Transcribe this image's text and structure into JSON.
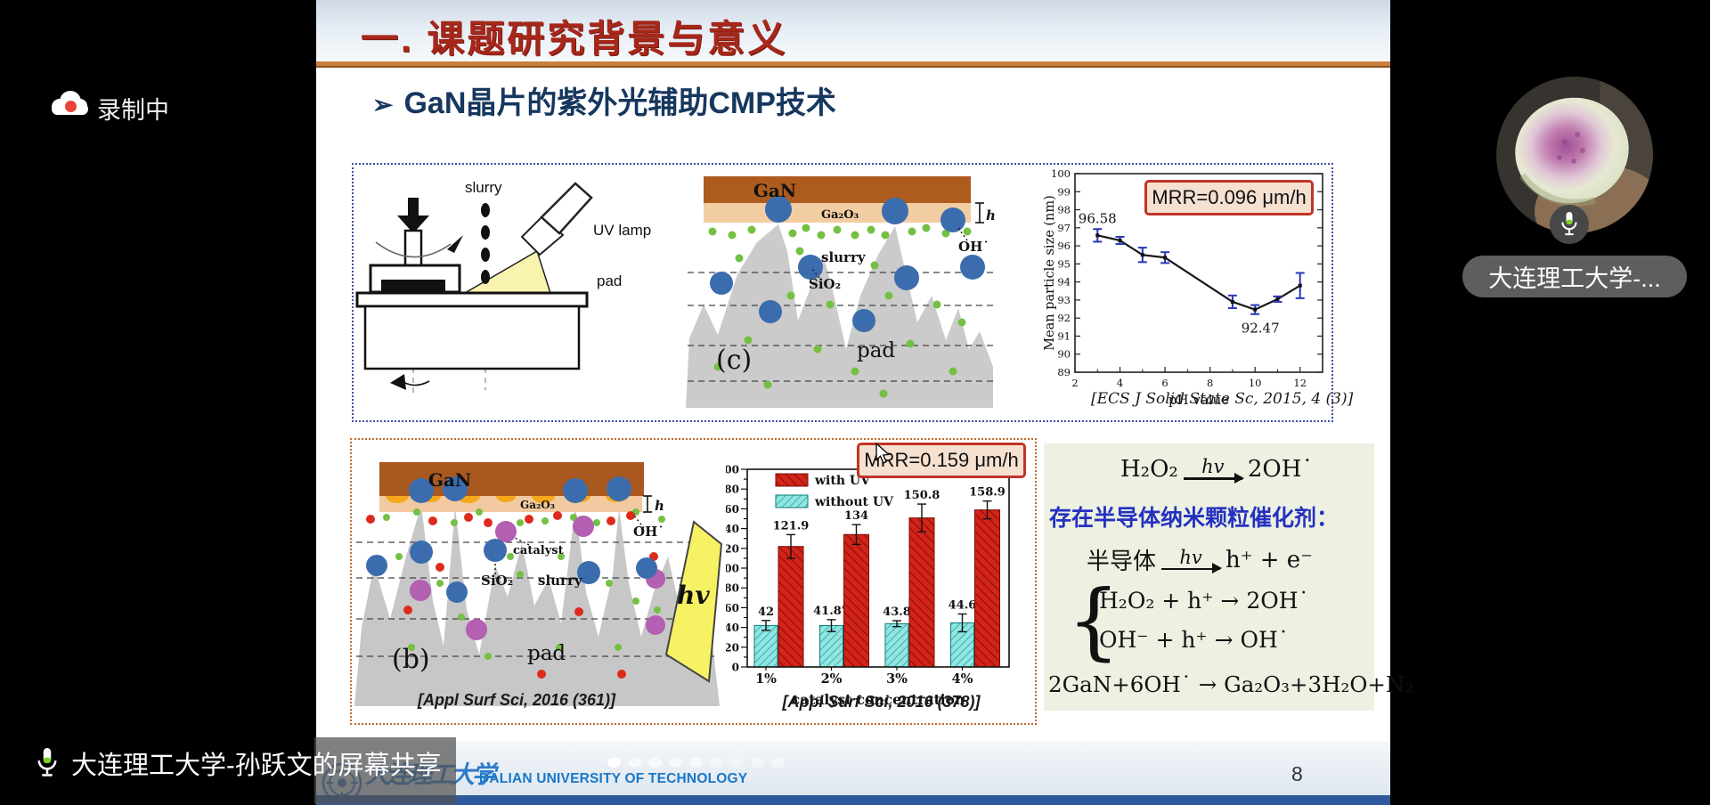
{
  "meeting": {
    "recording_label": "录制中",
    "screen_share_label": "大连理工大学-孙跃文的屏幕共享",
    "participant_name": "大连理工大学-..."
  },
  "slide": {
    "header": {
      "section_title": "一. 课题研究背景与意义",
      "bullet": "➢",
      "subtitle": "GaN晶片的紫外光辅助CMP技术"
    },
    "top_panel": {
      "cmp": {
        "slurry": "slurry",
        "uv_lamp": "UV lamp",
        "pad": "pad"
      },
      "diagram_c": {
        "gan": "GaN",
        "ga2o3": "Ga₂O₃",
        "h": "h",
        "oh": "OH˙",
        "slurry": "slurry",
        "sio2": "SiO₂",
        "pad": "pad",
        "tag": "(c)"
      },
      "citation": "[ECS J Solid State Sc, 2015, 4 (3)]"
    },
    "bottom_panel": {
      "diagram_b": {
        "gan": "GaN",
        "ga2o3": "Ga₂O₃",
        "h": "h",
        "oh": "OH˙",
        "catalyst": "catalyst",
        "sio2": "SiO₂",
        "slurry": "slurry",
        "pad": "pad",
        "tag": "(b)",
        "hv": "hv"
      },
      "citation_left": "[Appl Surf Sci, 2016 (361)]",
      "citation_right": "[Appl Surf Sci, 2016 (378)]"
    },
    "chemistry": {
      "eq1": {
        "left": "H₂O₂",
        "over": "hv",
        "right": "2OH˙"
      },
      "note": "存在半导体纳米颗粒催化剂：",
      "eq2": {
        "left": "半导体",
        "over": "hv",
        "right": "h⁺ + e⁻"
      },
      "eq3a": "H₂O₂ + h⁺ →  2OH˙",
      "eq3b": "OH⁻ + h⁺ →  OH˙",
      "eq4": "2GaN+6OH˙ → Ga₂O₃+3H₂O+N₂"
    },
    "footer": {
      "university_cn": "大连理工大学",
      "university_en": "DALIAN UNIVERSITY OF TECHNOLOGY",
      "page_number": "8"
    }
  },
  "chart_data": [
    {
      "type": "line",
      "xlabel": "pH value",
      "ylabel": "Mean particle size (nm)",
      "xlim": [
        2,
        13
      ],
      "ylim": [
        89,
        100
      ],
      "xticks": [
        2,
        4,
        6,
        8,
        10,
        12
      ],
      "x": [
        3,
        4,
        5,
        6,
        9,
        10,
        11,
        12
      ],
      "y": [
        96.58,
        96.3,
        95.5,
        95.35,
        92.9,
        92.47,
        93.05,
        93.8
      ],
      "yerr": [
        0.35,
        0.2,
        0.4,
        0.3,
        0.35,
        0.25,
        0.15,
        0.7
      ],
      "point_labels": {
        "0": "96.58",
        "5": "92.47"
      },
      "annotation": "MRR=0.096 μm/h",
      "line_color": "#1a1a1a",
      "error_color": "#2737b8",
      "legend_position": "none",
      "grid": false
    },
    {
      "type": "bar",
      "categories": [
        "1%",
        "2%",
        "3%",
        "4%"
      ],
      "series": [
        {
          "name": "with UV",
          "values": [
            121.9,
            134,
            150.8,
            158.9
          ],
          "yerr": [
            12,
            10,
            14,
            9
          ],
          "color": "#cf1f16"
        },
        {
          "name": "without UV",
          "values": [
            42,
            41.87,
            43.8,
            44.6
          ],
          "yerr": [
            5,
            6,
            3,
            9
          ],
          "color": "#8fe6e2"
        }
      ],
      "xlabel": "catalyst  concentration",
      "ylim": [
        0,
        200
      ],
      "ytick_step": 20,
      "annotation": "MRR=0.159 μm/h",
      "legend_position": "upper-left",
      "grid": false
    }
  ]
}
